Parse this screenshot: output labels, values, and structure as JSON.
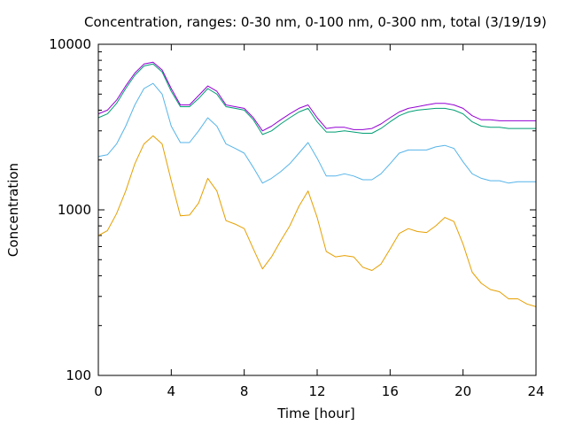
{
  "chart_data": {
    "type": "line",
    "title": "Concentration, ranges: 0-30 nm, 0-100 nm, 0-300 nm, total (3/19/19)",
    "xlabel": "Time [hour]",
    "ylabel": "Concentration",
    "xlim": [
      0,
      24
    ],
    "ylim": [
      100,
      10000
    ],
    "yscale": "log",
    "grid": false,
    "legend": "none",
    "x_ticks": [
      "0",
      "4",
      "8",
      "12",
      "16",
      "20",
      "24"
    ],
    "y_ticks": [
      "100",
      "1000",
      "10000"
    ],
    "x": [
      0,
      0.5,
      1,
      1.5,
      2,
      2.5,
      3,
      3.5,
      4,
      4.5,
      5,
      5.5,
      6,
      6.5,
      7,
      7.5,
      8,
      8.5,
      9,
      9.5,
      10,
      10.5,
      11,
      11.5,
      12,
      12.5,
      13,
      13.5,
      14,
      14.5,
      15,
      15.5,
      16,
      16.5,
      17,
      17.5,
      18,
      18.5,
      19,
      19.5,
      20,
      20.5,
      21,
      21.5,
      22,
      22.5,
      23,
      23.5,
      24
    ],
    "series": [
      {
        "color": "#9400d3",
        "values": [
          3800,
          4000,
          4600,
          5600,
          6700,
          7600,
          7800,
          7000,
          5400,
          4300,
          4300,
          4900,
          5600,
          5200,
          4300,
          4200,
          4100,
          3600,
          3000,
          3200,
          3500,
          3800,
          4100,
          4300,
          3600,
          3100,
          3150,
          3150,
          3050,
          3050,
          3100,
          3300,
          3600,
          3900,
          4100,
          4200,
          4300,
          4400,
          4400,
          4300,
          4100,
          3700,
          3500,
          3500,
          3450,
          3450,
          3450,
          3450,
          3450
        ]
      },
      {
        "color": "#009e73",
        "values": [
          3600,
          3800,
          4400,
          5400,
          6500,
          7400,
          7600,
          6800,
          5200,
          4200,
          4200,
          4700,
          5400,
          5000,
          4200,
          4100,
          4000,
          3500,
          2850,
          3000,
          3300,
          3600,
          3900,
          4100,
          3400,
          2950,
          2950,
          3000,
          2950,
          2900,
          2900,
          3100,
          3400,
          3700,
          3900,
          4000,
          4050,
          4100,
          4100,
          4000,
          3800,
          3400,
          3200,
          3150,
          3150,
          3100,
          3100,
          3100,
          3100
        ]
      },
      {
        "color": "#56b4e9",
        "values": [
          2100,
          2150,
          2500,
          3200,
          4300,
          5400,
          5800,
          5000,
          3200,
          2550,
          2550,
          3000,
          3600,
          3200,
          2500,
          2350,
          2200,
          1800,
          1450,
          1550,
          1700,
          1900,
          2200,
          2550,
          2050,
          1600,
          1600,
          1650,
          1600,
          1520,
          1520,
          1650,
          1900,
          2200,
          2300,
          2300,
          2300,
          2400,
          2450,
          2350,
          1950,
          1650,
          1550,
          1500,
          1500,
          1450,
          1480,
          1480,
          1480
        ]
      },
      {
        "color": "#e69f00",
        "values": [
          700,
          750,
          950,
          1300,
          1900,
          2500,
          2800,
          2500,
          1500,
          920,
          930,
          1100,
          1550,
          1300,
          860,
          820,
          770,
          580,
          440,
          520,
          650,
          800,
          1050,
          1300,
          900,
          560,
          520,
          530,
          520,
          450,
          430,
          470,
          580,
          720,
          770,
          740,
          730,
          800,
          900,
          850,
          620,
          420,
          360,
          330,
          320,
          290,
          290,
          270,
          260
        ]
      }
    ]
  }
}
